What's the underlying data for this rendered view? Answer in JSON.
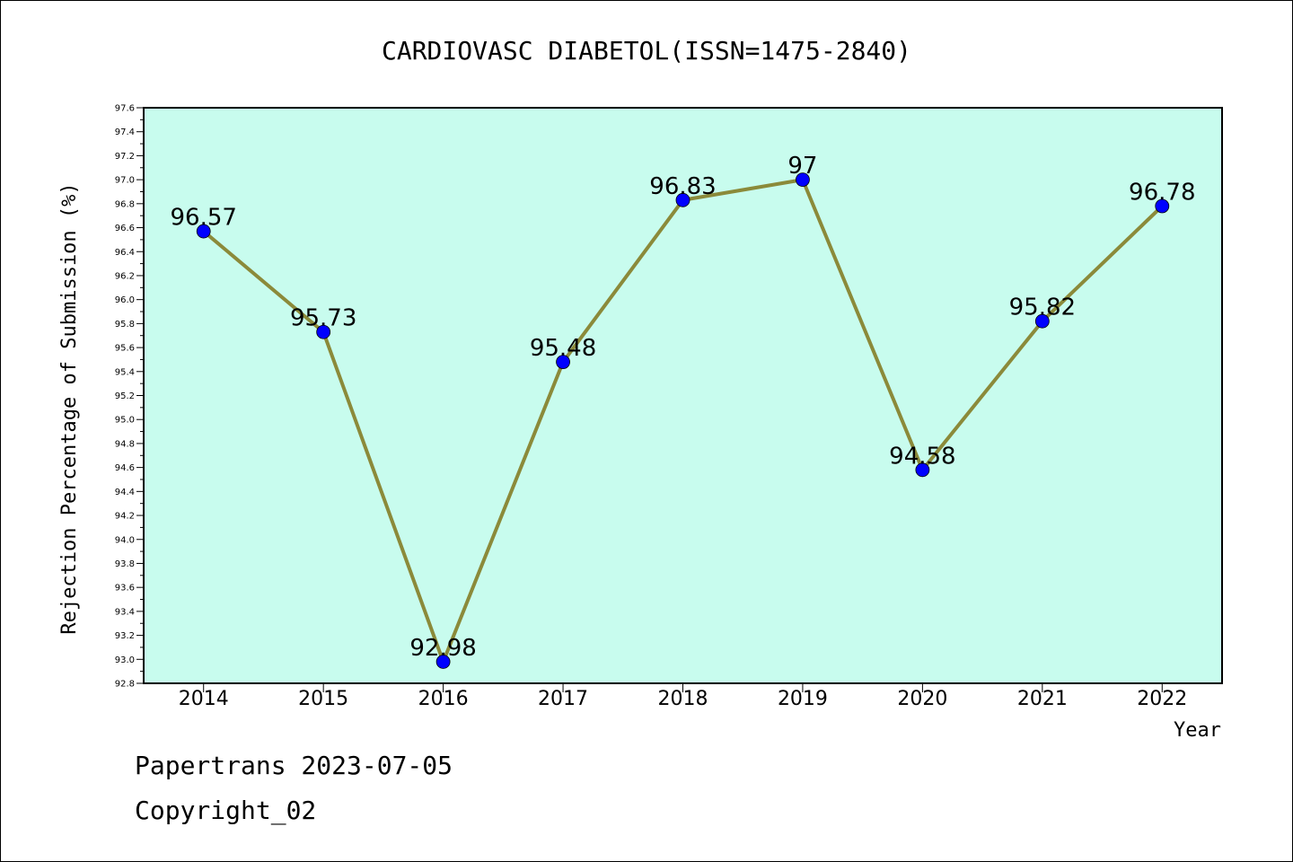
{
  "chart_data": {
    "type": "line",
    "title": "CARDIOVASC DIABETOL(ISSN=1475-2840)",
    "xlabel": "Year",
    "ylabel": "Rejection Percentage of Submission (%)",
    "categories": [
      "2014",
      "2015",
      "2016",
      "2017",
      "2018",
      "2019",
      "2020",
      "2021",
      "2022"
    ],
    "values": [
      96.57,
      95.73,
      92.98,
      95.48,
      96.83,
      97,
      94.58,
      95.82,
      96.78
    ],
    "data_labels": [
      "96.57",
      "95.73",
      "92.98",
      "95.48",
      "96.83",
      "97",
      "94.58",
      "95.82",
      "96.78"
    ],
    "ylim": [
      92.8,
      97.6
    ],
    "ytick_step": 0.2,
    "ytick_labels": [
      "92.8",
      "93.0",
      "93.2",
      "93.4",
      "93.6",
      "93.8",
      "94.0",
      "94.2",
      "94.4",
      "94.6",
      "94.8",
      "95.0",
      "95.2",
      "95.4",
      "95.6",
      "95.8",
      "96.0",
      "96.2",
      "96.4",
      "96.6",
      "96.8",
      "97.0",
      "97.2",
      "97.4",
      "97.6"
    ],
    "grid": false,
    "colors": {
      "plot_background": "#c8fcee",
      "line": "#8b8a3a",
      "marker": "#0000ff"
    }
  },
  "footer": {
    "line1": "Papertrans 2023-07-05",
    "line2": "Copyright_02"
  }
}
